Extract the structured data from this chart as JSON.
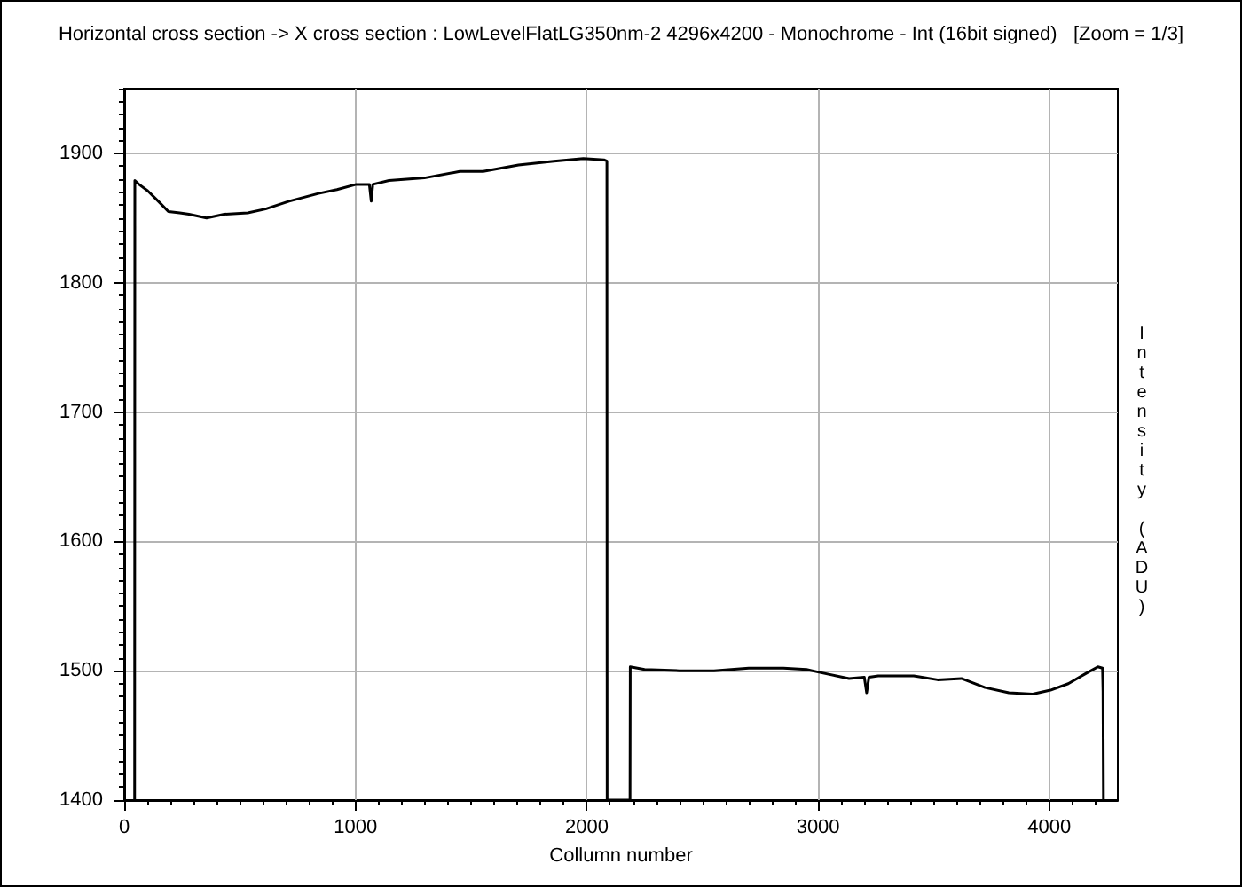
{
  "chart_data": {
    "type": "line",
    "title": "Horizontal cross section -> X cross section : LowLevelFlatLG350nm-2 4296x4200 - Monochrome - Int (16bit signed)   [Zoom = 1/3]",
    "xlabel": "Collumn number",
    "ylabel": "Intensity (ADU)",
    "x": [
      45,
      46,
      64,
      102,
      153,
      191,
      240,
      280,
      356,
      433,
      534,
      611,
      713,
      840,
      920,
      1003,
      1060,
      1068,
      1075,
      1145,
      1298,
      1451,
      1552,
      1705,
      1858,
      1985,
      2074,
      2087,
      2088,
      2187,
      2188,
      2250,
      2400,
      2550,
      2700,
      2850,
      2950,
      3000,
      3134,
      3200,
      3210,
      3220,
      3260,
      3414,
      3517,
      3620,
      3722,
      3825,
      3928,
      4005,
      4082,
      4159,
      4210,
      4230,
      4232,
      4234
    ],
    "values": [
      1400,
      1879,
      1876,
      1871,
      1862,
      1855,
      1854,
      1853,
      1850,
      1853,
      1854,
      1857,
      1863,
      1869,
      1872,
      1876,
      1876,
      1863,
      1876,
      1879,
      1881,
      1886,
      1886,
      1891,
      1894,
      1896,
      1895,
      1894,
      1400,
      1400,
      1503,
      1501,
      1500,
      1500,
      1502,
      1502,
      1501,
      1499,
      1494,
      1495,
      1483,
      1495,
      1496,
      1496,
      1493,
      1494,
      1487,
      1483,
      1482,
      1485,
      1490,
      1498,
      1503,
      1502,
      1484,
      1400
    ],
    "color": "#000000",
    "xlim": [
      0,
      4296
    ],
    "xticks": [
      0,
      {
        "value": 100,
        "label": null
      },
      {
        "value": 200,
        "label": null
      },
      {
        "value": 300,
        "label": null
      },
      {
        "value": 400,
        "label": null
      },
      {
        "value": 500,
        "label": null
      },
      {
        "value": 600,
        "label": null
      },
      {
        "value": 700,
        "label": null
      },
      {
        "value": 800,
        "label": null
      },
      {
        "value": 900,
        "label": null
      },
      1000,
      {
        "value": 1100,
        "label": null
      },
      {
        "value": 1200,
        "label": null
      },
      {
        "value": 1300,
        "label": null
      },
      {
        "value": 1400,
        "label": null
      },
      {
        "value": 1500,
        "label": null
      },
      {
        "value": 1600,
        "label": null
      },
      {
        "value": 1700,
        "label": null
      },
      {
        "value": 1800,
        "label": null
      },
      {
        "value": 1900,
        "label": null
      },
      2000,
      {
        "value": 2100,
        "label": null
      },
      {
        "value": 2200,
        "label": null
      },
      {
        "value": 2300,
        "label": null
      },
      {
        "value": 2400,
        "label": null
      },
      {
        "value": 2500,
        "label": null
      },
      {
        "value": 2600,
        "label": null
      },
      {
        "value": 2700,
        "label": null
      },
      {
        "value": 2800,
        "label": null
      },
      {
        "value": 2900,
        "label": null
      },
      3000,
      {
        "value": 3100,
        "label": null
      },
      {
        "value": 3200,
        "label": null
      },
      {
        "value": 3300,
        "label": null
      },
      {
        "value": 3400,
        "label": null
      },
      {
        "value": 3500,
        "label": null
      },
      {
        "value": 3600,
        "label": null
      },
      {
        "value": 3700,
        "label": null
      },
      {
        "value": 3800,
        "label": null
      },
      {
        "value": 3900,
        "label": null
      },
      4000,
      {
        "value": 4100,
        "label": null
      },
      {
        "value": 4200,
        "label": null
      }
    ],
    "ylim": [
      1400,
      1950
    ],
    "yticks": [
      1400,
      {
        "value": 1410,
        "label": null
      },
      {
        "value": 1420,
        "label": null
      },
      {
        "value": 1430,
        "label": null
      },
      {
        "value": 1440,
        "label": null
      },
      {
        "value": 1450,
        "label": null
      },
      {
        "value": 1460,
        "label": null
      },
      {
        "value": 1470,
        "label": null
      },
      {
        "value": 1480,
        "label": null
      },
      {
        "value": 1490,
        "label": null
      },
      1500,
      {
        "value": 1510,
        "label": null
      },
      {
        "value": 1520,
        "label": null
      },
      {
        "value": 1530,
        "label": null
      },
      {
        "value": 1540,
        "label": null
      },
      {
        "value": 1550,
        "label": null
      },
      {
        "value": 1560,
        "label": null
      },
      {
        "value": 1570,
        "label": null
      },
      {
        "value": 1580,
        "label": null
      },
      {
        "value": 1590,
        "label": null
      },
      1600,
      {
        "value": 1610,
        "label": null
      },
      {
        "value": 1620,
        "label": null
      },
      {
        "value": 1630,
        "label": null
      },
      {
        "value": 1640,
        "label": null
      },
      {
        "value": 1650,
        "label": null
      },
      {
        "value": 1660,
        "label": null
      },
      {
        "value": 1670,
        "label": null
      },
      {
        "value": 1680,
        "label": null
      },
      {
        "value": 1690,
        "label": null
      },
      1700,
      {
        "value": 1710,
        "label": null
      },
      {
        "value": 1720,
        "label": null
      },
      {
        "value": 1730,
        "label": null
      },
      {
        "value": 1740,
        "label": null
      },
      {
        "value": 1750,
        "label": null
      },
      {
        "value": 1760,
        "label": null
      },
      {
        "value": 1770,
        "label": null
      },
      {
        "value": 1780,
        "label": null
      },
      {
        "value": 1790,
        "label": null
      },
      1800,
      {
        "value": 1810,
        "label": null
      },
      {
        "value": 1820,
        "label": null
      },
      {
        "value": 1830,
        "label": null
      },
      {
        "value": 1840,
        "label": null
      },
      {
        "value": 1850,
        "label": null
      },
      {
        "value": 1860,
        "label": null
      },
      {
        "value": 1870,
        "label": null
      },
      {
        "value": 1880,
        "label": null
      },
      {
        "value": 1890,
        "label": null
      },
      1900,
      {
        "value": 1910,
        "label": null
      },
      {
        "value": 1920,
        "label": null
      },
      {
        "value": 1930,
        "label": null
      },
      {
        "value": 1940,
        "label": null
      },
      {
        "value": 1950,
        "label": null
      }
    ],
    "grid": true
  }
}
